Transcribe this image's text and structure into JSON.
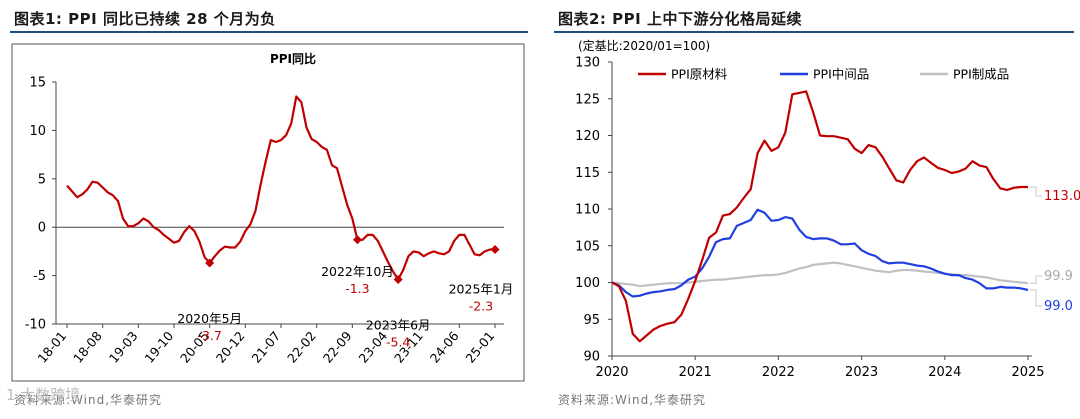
{
  "charts": [
    {
      "header": "图表1:  PPI 同比已持续 28 个月为负",
      "source": "资料来源:Wind,华泰研究",
      "chart_data": {
        "type": "line",
        "title": "PPI同比",
        "ylim": [
          -10,
          15
        ],
        "yticks": [
          "15",
          "10",
          "5",
          "0",
          "-5",
          "-10"
        ],
        "xticks": [
          "18-01",
          "18-08",
          "19-03",
          "19-10",
          "20-05",
          "20-12",
          "21-07",
          "22-02",
          "22-09",
          "23-04",
          "23-11",
          "24-06",
          "25-01"
        ],
        "series": [
          {
            "name": "PPI同比",
            "color": "#c00000",
            "values": [
              4.3,
              3.7,
              3.1,
              3.4,
              3.9,
              4.7,
              4.6,
              4.1,
              3.6,
              3.3,
              2.7,
              0.9,
              0.1,
              0.1,
              0.4,
              0.9,
              0.6,
              0.0,
              -0.3,
              -0.8,
              -1.2,
              -1.6,
              -1.4,
              -0.5,
              0.1,
              -0.4,
              -1.5,
              -3.1,
              -3.7,
              -3.0,
              -2.4,
              -2.0,
              -2.1,
              -2.1,
              -1.5,
              -0.4,
              0.3,
              1.7,
              4.4,
              6.8,
              9.0,
              8.8,
              9.0,
              9.5,
              10.7,
              13.5,
              12.9,
              10.3,
              9.1,
              8.8,
              8.3,
              8.0,
              6.4,
              6.1,
              4.2,
              2.3,
              0.9,
              -1.3,
              -1.3,
              -0.8,
              -0.8,
              -1.4,
              -2.5,
              -3.6,
              -4.6,
              -5.4,
              -4.4,
              -3.0,
              -2.5,
              -2.6,
              -3.0,
              -2.7,
              -2.5,
              -2.7,
              -2.8,
              -2.5,
              -1.4,
              -0.8,
              -0.8,
              -1.8,
              -2.8,
              -2.9,
              -2.5,
              -2.3,
              -2.3
            ]
          }
        ],
        "annotations": [
          {
            "date": "2020年5月",
            "value": "-3.7"
          },
          {
            "date": "2022年10月",
            "value": "-1.3"
          },
          {
            "date": "2023年6月",
            "value": "-5.4"
          },
          {
            "date": "2025年1月",
            "value": "-2.3"
          }
        ]
      }
    },
    {
      "header": "图表2:  PPI 上中下游分化格局延续",
      "source": "资料来源:Wind,华泰研究",
      "chart_data": {
        "type": "line",
        "subtitle": "(定基比:2020/01=100)",
        "ylim": [
          90,
          130
        ],
        "yticks": [
          "130",
          "125",
          "120",
          "115",
          "110",
          "105",
          "100",
          "95",
          "90"
        ],
        "xticks": [
          "2020",
          "2021",
          "2022",
          "2023",
          "2024",
          "2025"
        ],
        "series": [
          {
            "name": "PPI原材料",
            "color": "#c00000",
            "end_label": "113.0",
            "values": [
              100.0,
              99.5,
              97.5,
              93.0,
              92.0,
              92.8,
              93.6,
              94.1,
              94.4,
              94.6,
              95.6,
              97.8,
              100.2,
              103.0,
              106.1,
              106.8,
              109.1,
              109.3,
              110.2,
              111.5,
              112.7,
              117.6,
              119.3,
              117.9,
              118.4,
              120.4,
              125.6,
              125.8,
              126.0,
              123.2,
              120.0,
              119.9,
              119.9,
              119.7,
              119.5,
              118.2,
              117.6,
              118.7,
              118.4,
              117.1,
              115.5,
              113.9,
              113.6,
              115.3,
              116.5,
              117.0,
              116.3,
              115.6,
              115.3,
              114.9,
              115.1,
              115.5,
              116.5,
              115.9,
              115.7,
              114.1,
              112.8,
              112.6,
              112.9,
              113.0,
              113.0
            ]
          },
          {
            "name": "PPI中间品",
            "color": "#1f3fe0",
            "end_label": "99.0",
            "values": [
              100.0,
              99.6,
              98.7,
              98.1,
              98.2,
              98.5,
              98.7,
              98.8,
              99.0,
              99.1,
              99.6,
              100.4,
              100.8,
              101.9,
              103.5,
              105.5,
              105.9,
              106.0,
              107.7,
              108.1,
              108.5,
              109.9,
              109.5,
              108.4,
              108.5,
              108.9,
              108.7,
              107.2,
              106.2,
              105.9,
              106.0,
              106.0,
              105.7,
              105.2,
              105.2,
              105.3,
              104.4,
              103.9,
              103.6,
              102.9,
              102.6,
              102.7,
              102.7,
              102.5,
              102.3,
              102.2,
              101.9,
              101.5,
              101.2,
              101.0,
              101.0,
              100.6,
              100.4,
              99.9,
              99.2,
              99.2,
              99.4,
              99.3,
              99.3,
              99.2,
              99.0
            ]
          },
          {
            "name": "PPI制成品",
            "color": "#c0c0c0",
            "end_label": "99.9",
            "values": [
              100.0,
              99.9,
              99.8,
              99.7,
              99.5,
              99.6,
              99.7,
              99.8,
              99.9,
              99.9,
              99.9,
              100.0,
              100.1,
              100.2,
              100.3,
              100.4,
              100.4,
              100.5,
              100.6,
              100.7,
              100.8,
              100.9,
              101.0,
              101.0,
              101.1,
              101.3,
              101.6,
              101.9,
              102.1,
              102.4,
              102.5,
              102.6,
              102.7,
              102.6,
              102.4,
              102.2,
              102.0,
              101.8,
              101.6,
              101.5,
              101.4,
              101.6,
              101.7,
              101.7,
              101.6,
              101.5,
              101.4,
              101.3,
              101.2,
              101.1,
              101.0,
              101.0,
              100.9,
              100.8,
              100.7,
              100.5,
              100.3,
              100.2,
              100.1,
              100.0,
              99.9
            ]
          }
        ]
      }
    }
  ],
  "watermark": "1 大数跨境"
}
